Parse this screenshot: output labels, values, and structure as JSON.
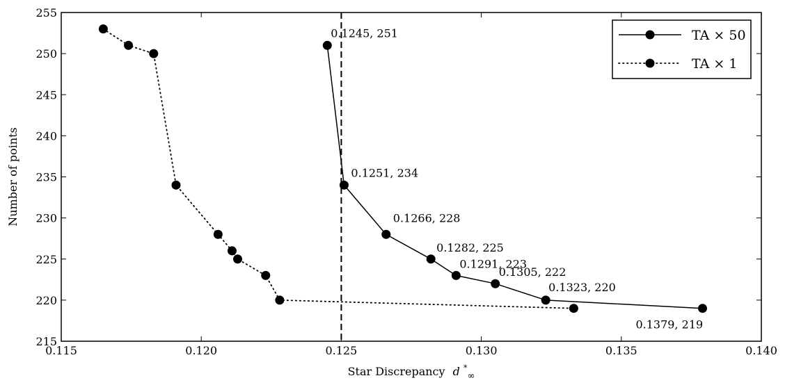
{
  "chart_data": {
    "type": "line",
    "title": "",
    "xlabel": "Star Discrepancy",
    "xlabel_symbol": "d",
    "xlabel_sup": "*",
    "xlabel_sub": "∞",
    "ylabel": "Number of points",
    "xlim": [
      0.115,
      0.14
    ],
    "ylim": [
      215,
      255
    ],
    "xticks": [
      "0.115",
      "0.120",
      "0.125",
      "0.130",
      "0.135",
      "0.140"
    ],
    "yticks": [
      "215",
      "220",
      "225",
      "230",
      "235",
      "240",
      "245",
      "250",
      "255"
    ],
    "grid": false,
    "legend": "top-right",
    "vline_x": 0.125,
    "series": [
      {
        "name": "TA × 50",
        "style": "solid",
        "x": [
          0.1245,
          0.1251,
          0.1266,
          0.1282,
          0.1291,
          0.1305,
          0.1323,
          0.1379
        ],
        "y": [
          251,
          234,
          228,
          225,
          223,
          222,
          220,
          219
        ]
      },
      {
        "name": "TA × 1",
        "style": "dotted",
        "x": [
          0.1165,
          0.1174,
          0.1183,
          0.1191,
          0.1206,
          0.1211,
          0.1213,
          0.1223,
          0.1228,
          0.1333
        ],
        "y": [
          253,
          251,
          250,
          234,
          228,
          226,
          225,
          223,
          220,
          219
        ]
      }
    ],
    "annotations": [
      {
        "text": "0.1245, 251",
        "x": 0.1245,
        "y": 251
      },
      {
        "text": "0.1251, 234",
        "x": 0.1251,
        "y": 234
      },
      {
        "text": "0.1266, 228",
        "x": 0.1266,
        "y": 228
      },
      {
        "text": "0.1282, 225",
        "x": 0.1282,
        "y": 225
      },
      {
        "text": "0.1291, 223",
        "x": 0.1291,
        "y": 223
      },
      {
        "text": "0.1305, 222",
        "x": 0.1305,
        "y": 222
      },
      {
        "text": "0.1323, 220",
        "x": 0.1323,
        "y": 220
      },
      {
        "text": "0.1379, 219",
        "x": 0.1379,
        "y": 219
      }
    ]
  }
}
